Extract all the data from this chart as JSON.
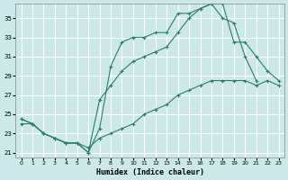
{
  "xlabel": "Humidex (Indice chaleur)",
  "background_color": "#cce8e8",
  "grid_color": "#ffffff",
  "line_color": "#2e7d6e",
  "xlim": [
    -0.5,
    23.5
  ],
  "ylim": [
    20.5,
    36.5
  ],
  "xticks": [
    0,
    1,
    2,
    3,
    4,
    5,
    6,
    7,
    8,
    9,
    10,
    11,
    12,
    13,
    14,
    15,
    16,
    17,
    18,
    19,
    20,
    21,
    22,
    23
  ],
  "yticks": [
    21,
    23,
    25,
    27,
    29,
    31,
    33,
    35
  ],
  "line1_x": [
    0,
    1,
    2,
    3,
    4,
    5,
    6,
    7,
    8,
    9,
    10,
    11,
    12,
    13,
    14,
    15,
    16,
    17,
    18,
    19,
    20,
    21
  ],
  "line1_y": [
    24.5,
    24.0,
    23.0,
    22.5,
    22.0,
    22.0,
    21.0,
    23.5,
    30.0,
    32.5,
    33.0,
    33.0,
    33.5,
    33.5,
    35.5,
    35.5,
    36.0,
    36.5,
    35.0,
    34.5,
    31.0,
    28.5
  ],
  "line2_x": [
    0,
    1,
    2,
    3,
    4,
    5,
    6,
    7,
    8,
    9,
    10,
    11,
    12,
    13,
    14,
    15,
    16,
    17,
    18,
    19,
    20,
    21,
    22,
    23
  ],
  "line2_y": [
    24.0,
    24.0,
    23.0,
    22.5,
    22.0,
    22.0,
    21.5,
    22.5,
    23.0,
    23.5,
    24.0,
    25.0,
    25.5,
    26.0,
    27.0,
    27.5,
    28.0,
    28.5,
    28.5,
    28.5,
    28.5,
    28.0,
    28.5,
    28.0
  ],
  "line3_x": [
    0,
    1,
    2,
    3,
    4,
    5,
    6,
    7,
    8,
    9,
    10,
    11,
    12,
    13,
    14,
    15,
    16,
    17,
    18,
    19,
    20,
    21,
    22,
    23
  ],
  "line3_y": [
    24.5,
    24.0,
    23.0,
    22.5,
    22.0,
    22.0,
    21.0,
    26.5,
    28.0,
    29.5,
    30.5,
    31.0,
    31.5,
    32.0,
    33.5,
    35.0,
    36.0,
    36.5,
    36.5,
    32.5,
    32.5,
    31.0,
    29.5,
    28.5
  ]
}
